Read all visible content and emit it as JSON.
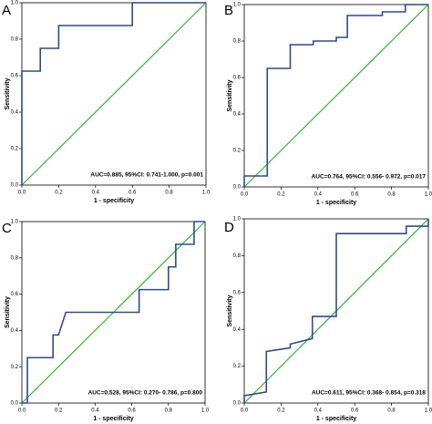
{
  "chart_data": [
    {
      "type": "line",
      "panel": "A",
      "xlabel": "1 - specificity",
      "ylabel": "Sensitivity",
      "annotation": "AUC=0.885, 95%CI: 0.741-1.000, p=0.001",
      "x": [
        0,
        0,
        0.1,
        0.1,
        0.2,
        0.2,
        0.6,
        0.6,
        1
      ],
      "values": [
        0,
        0.625,
        0.625,
        0.75,
        0.75,
        0.875,
        0.875,
        1,
        1
      ],
      "color": "#2f4a8e",
      "reference_color": "#2eb82e",
      "xlim": [
        0,
        1
      ],
      "ylim": [
        0,
        1
      ],
      "xticks": [
        {
          "value": 0,
          "label": "0.0"
        },
        0.2,
        0.4,
        0.6,
        0.8,
        {
          "value": 1,
          "label": "1.0"
        }
      ],
      "yticks": [
        {
          "value": 0,
          "label": "0.0"
        },
        0.2,
        0.4,
        0.6,
        0.8,
        {
          "value": 1,
          "label": "1.0"
        }
      ]
    },
    {
      "type": "line",
      "panel": "B",
      "xlabel": "1 - specificity",
      "ylabel": "Sensitivity",
      "annotation": "AUC=0.764, 95%CI: 0.556- 0.972, p=0.017",
      "x": [
        0,
        0,
        0.125,
        0.125,
        0.25,
        0.25,
        0.375,
        0.375,
        0.5,
        0.5,
        0.56,
        0.56,
        0.75,
        0.75,
        0.875,
        0.875,
        1
      ],
      "values": [
        0,
        0.06,
        0.06,
        0.65,
        0.65,
        0.78,
        0.78,
        0.8,
        0.8,
        0.82,
        0.82,
        0.94,
        0.94,
        0.96,
        0.96,
        1,
        1
      ],
      "color": "#2f4a8e",
      "reference_color": "#2eb82e",
      "xlim": [
        0,
        1
      ],
      "ylim": [
        0,
        1
      ],
      "xticks": [
        {
          "value": 0,
          "label": "0.0"
        },
        0.2,
        0.4,
        0.6,
        0.8,
        {
          "value": 1,
          "label": "1.0"
        }
      ],
      "yticks": [
        {
          "value": 0,
          "label": "0.0"
        },
        0.2,
        0.4,
        0.6,
        0.8,
        {
          "value": 1,
          "label": "1.0"
        }
      ]
    },
    {
      "type": "line",
      "panel": "C",
      "xlabel": "1 - specificity",
      "ylabel": "Sensitivity",
      "annotation": "AUC=0.528, 95%CI: 0.270- 0.786, p=0.800",
      "x": [
        0,
        0.03,
        0.03,
        0.17,
        0.17,
        0.2,
        0.24,
        0.64,
        0.64,
        0.8,
        0.8,
        0.84,
        0.84,
        0.94,
        0.94,
        1
      ],
      "values": [
        0,
        0,
        0.25,
        0.25,
        0.375,
        0.375,
        0.5,
        0.5,
        0.625,
        0.625,
        0.75,
        0.75,
        0.875,
        0.875,
        1,
        1
      ],
      "color": "#2f4a8e",
      "reference_color": "#2eb82e",
      "xlim": [
        0,
        1
      ],
      "ylim": [
        0,
        1
      ],
      "xticks": [
        {
          "value": 0,
          "label": "0.0"
        },
        0.2,
        0.4,
        0.6,
        0.8,
        {
          "value": 1,
          "label": "1.0"
        }
      ],
      "yticks": [
        {
          "value": 0,
          "label": "0.0"
        },
        0.2,
        0.4,
        0.6,
        0.8,
        {
          "value": 1,
          "label": "1.0"
        }
      ]
    },
    {
      "type": "line",
      "panel": "D",
      "xlabel": "1 - specificity",
      "ylabel": "Sensitivity",
      "annotation": "AUC=0.611, 95%CI: 0.368- 0.854, p=0.318",
      "x": [
        0,
        0,
        0.12,
        0.12,
        0.25,
        0.25,
        0.37,
        0.37,
        0.5,
        0.5,
        0.88,
        0.88,
        1,
        1
      ],
      "values": [
        0,
        0.04,
        0.06,
        0.28,
        0.3,
        0.32,
        0.35,
        0.47,
        0.47,
        0.92,
        0.92,
        0.96,
        0.96,
        1
      ],
      "color": "#2f4a8e",
      "reference_color": "#2eb82e",
      "xlim": [
        0,
        1
      ],
      "ylim": [
        0,
        1
      ],
      "xticks": [
        {
          "value": 0,
          "label": "0.0"
        },
        0.2,
        0.4,
        0.6,
        0.8,
        {
          "value": 1,
          "label": "1.0"
        }
      ],
      "yticks": [
        {
          "value": 0,
          "label": "0.0"
        },
        0.2,
        0.4,
        0.6,
        0.8,
        {
          "value": 1,
          "label": "1.0"
        }
      ]
    }
  ]
}
